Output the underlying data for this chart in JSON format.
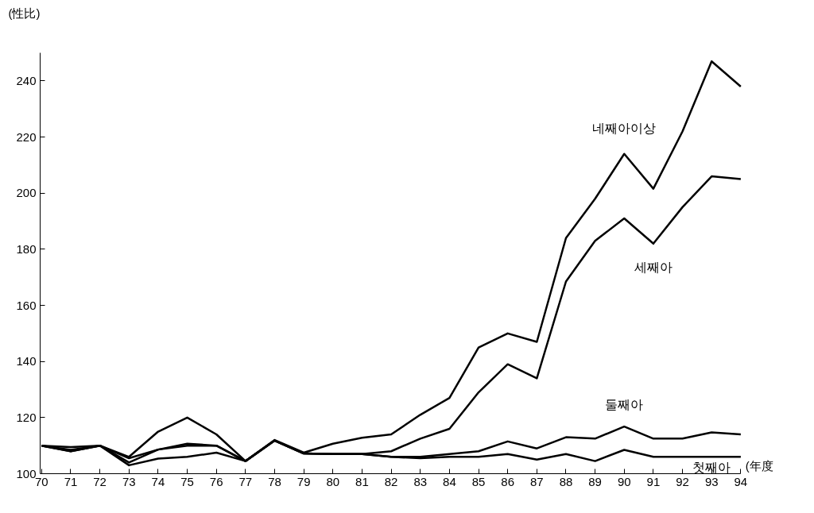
{
  "chart_data": {
    "type": "line",
    "ylabel": "(性比)",
    "xlabel": "(年度",
    "categories": [
      "70",
      "71",
      "72",
      "73",
      "74",
      "75",
      "76",
      "77",
      "78",
      "79",
      "80",
      "81",
      "82",
      "83",
      "84",
      "85",
      "86",
      "87",
      "88",
      "89",
      "90",
      "91",
      "92",
      "93",
      "94"
    ],
    "series": [
      {
        "name": "네째아이상",
        "color": "#000000",
        "values": [
          110,
          109.5,
          110,
          106,
          115,
          120,
          114,
          104.5,
          112,
          107.5,
          110.7,
          112.8,
          114,
          121,
          127,
          145,
          150,
          147,
          184,
          198,
          214,
          201.6,
          222,
          247,
          238
        ]
      },
      {
        "name": "세째아",
        "color": "#000000",
        "values": [
          110,
          108.5,
          110,
          105.5,
          108.6,
          110.7,
          110,
          104.5,
          111.8,
          107.2,
          107,
          107,
          108,
          112.5,
          116,
          129,
          139,
          134,
          168.5,
          183,
          191,
          182,
          195,
          206,
          205
        ]
      },
      {
        "name": "둘째아",
        "color": "#000000",
        "values": [
          110,
          108,
          110,
          104,
          108.6,
          110,
          110,
          104.5,
          111.8,
          107.2,
          107,
          107,
          106,
          106,
          107,
          108,
          111.5,
          109,
          113,
          112.5,
          116.8,
          112.5,
          112.5,
          114.7,
          114
        ]
      },
      {
        "name": "첫째아",
        "color": "#000000",
        "values": [
          110,
          108,
          110,
          103,
          105.4,
          106,
          107.5,
          104.5,
          111.8,
          107.2,
          107,
          107,
          106,
          105.5,
          106,
          106,
          107,
          105,
          107,
          104.5,
          108.5,
          106,
          106,
          106,
          106
        ]
      }
    ],
    "ylim": [
      100,
      250
    ],
    "yticks": [
      100,
      120,
      140,
      160,
      180,
      200,
      220,
      240
    ],
    "marker": "none",
    "line_style": "solid"
  }
}
